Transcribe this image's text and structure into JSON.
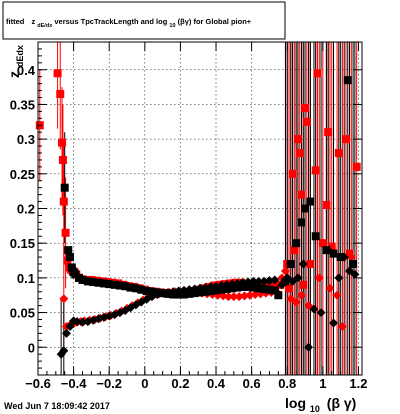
{
  "chart_data": {
    "type": "scatter",
    "title_prefix": "fitted",
    "title_z": "z",
    "title_sub": "dE/dx",
    "title_mid": " versus TpcTrackLength and log",
    "title_sub2": "10",
    "title_end": "(βγ) for Global pion+",
    "ylabel": "z",
    "ylabel_sub": "dEdx",
    "xlabel_main": "log",
    "xlabel_sub": "10",
    "xlabel_end": "(β γ)",
    "xlim": [
      -0.6,
      1.22
    ],
    "ylim": [
      -0.04,
      0.44
    ],
    "xticks": [
      -0.6,
      -0.4,
      -0.2,
      0,
      0.2,
      0.4,
      0.6,
      0.8,
      1,
      1.2
    ],
    "xtick_labels": [
      "−0.6",
      "−0.4",
      "−0.2",
      "0",
      "0.2",
      "0.4",
      "0.6",
      "0.8",
      "1",
      "1.2"
    ],
    "yticks": [
      0,
      0.05,
      0.1,
      0.15,
      0.2,
      0.25,
      0.3,
      0.35,
      0.4
    ],
    "ytick_labels": [
      "0",
      "0.05",
      "0.1",
      "0.15",
      "0.2",
      "0.25",
      "0.3",
      "0.35",
      "0.4"
    ],
    "grid": true,
    "timestamp": "Wed Jun  7 18:09:42 2017",
    "colors": {
      "red": "#ff0000",
      "black": "#000000"
    },
    "series": [
      {
        "color": "#ff0000",
        "marker": "square",
        "points": [
          [
            -0.59,
            0.32
          ],
          [
            -0.49,
            0.395
          ],
          [
            -0.475,
            0.365
          ],
          [
            -0.465,
            0.295
          ],
          [
            -0.46,
            0.27
          ],
          [
            -0.455,
            0.21
          ],
          [
            -0.445,
            0.165
          ],
          [
            -0.435,
            0.125
          ],
          [
            -0.425,
            0.115
          ],
          [
            -0.415,
            0.112
          ],
          [
            -0.405,
            0.11
          ],
          [
            -0.395,
            0.108
          ],
          [
            -0.385,
            0.105
          ],
          [
            -0.37,
            0.1
          ],
          [
            -0.35,
            0.098
          ],
          [
            -0.33,
            0.097
          ],
          [
            -0.3,
            0.097
          ],
          [
            -0.27,
            0.096
          ],
          [
            -0.24,
            0.095
          ],
          [
            -0.21,
            0.094
          ],
          [
            -0.18,
            0.093
          ],
          [
            -0.15,
            0.092
          ],
          [
            -0.12,
            0.09
          ],
          [
            -0.09,
            0.088
          ],
          [
            -0.06,
            0.087
          ],
          [
            -0.03,
            0.085
          ],
          [
            0.0,
            0.083
          ],
          [
            0.03,
            0.081
          ],
          [
            0.06,
            0.08
          ],
          [
            0.09,
            0.079
          ],
          [
            0.12,
            0.078
          ],
          [
            0.15,
            0.077
          ],
          [
            0.18,
            0.076
          ],
          [
            0.21,
            0.077
          ],
          [
            0.24,
            0.079
          ],
          [
            0.27,
            0.081
          ],
          [
            0.3,
            0.083
          ],
          [
            0.33,
            0.085
          ],
          [
            0.36,
            0.087
          ],
          [
            0.39,
            0.089
          ],
          [
            0.42,
            0.09
          ],
          [
            0.45,
            0.091
          ],
          [
            0.48,
            0.092
          ],
          [
            0.51,
            0.093
          ],
          [
            0.54,
            0.093
          ],
          [
            0.57,
            0.092
          ],
          [
            0.6,
            0.092
          ],
          [
            0.63,
            0.091
          ],
          [
            0.66,
            0.09
          ],
          [
            0.69,
            0.09
          ],
          [
            0.72,
            0.088
          ],
          [
            0.76,
            0.09
          ],
          [
            0.78,
            0.095
          ],
          [
            0.8,
            0.12
          ],
          [
            0.81,
            0.085
          ],
          [
            0.83,
            0.25
          ],
          [
            0.84,
            0.14
          ],
          [
            0.86,
            0.3
          ],
          [
            0.87,
            0.28
          ],
          [
            0.88,
            0.22
          ],
          [
            0.89,
            0.09
          ],
          [
            0.9,
            0.345
          ],
          [
            0.91,
            0.325
          ],
          [
            0.93,
            0.12
          ],
          [
            0.96,
            0.255
          ],
          [
            0.97,
            0.395
          ],
          [
            1.0,
            0.15
          ],
          [
            1.02,
            0.205
          ],
          [
            1.03,
            0.31
          ],
          [
            1.05,
            0.145
          ],
          [
            1.09,
            0.28
          ],
          [
            1.13,
            0.3
          ],
          [
            1.15,
            0.135
          ],
          [
            1.19,
            0.26
          ]
        ]
      },
      {
        "color": "#ff0000",
        "marker": "diamond",
        "points": [
          [
            -0.455,
            0.07
          ],
          [
            -0.44,
            0.03
          ],
          [
            -0.42,
            0.032
          ],
          [
            -0.4,
            0.034
          ],
          [
            -0.38,
            0.036
          ],
          [
            -0.36,
            0.037
          ],
          [
            -0.34,
            0.038
          ],
          [
            -0.31,
            0.039
          ],
          [
            -0.28,
            0.04
          ],
          [
            -0.25,
            0.042
          ],
          [
            -0.22,
            0.044
          ],
          [
            -0.19,
            0.046
          ],
          [
            -0.16,
            0.049
          ],
          [
            -0.13,
            0.052
          ],
          [
            -0.1,
            0.056
          ],
          [
            -0.07,
            0.06
          ],
          [
            -0.04,
            0.064
          ],
          [
            -0.01,
            0.068
          ],
          [
            0.02,
            0.072
          ],
          [
            0.05,
            0.075
          ],
          [
            0.08,
            0.077
          ],
          [
            0.11,
            0.078
          ],
          [
            0.14,
            0.079
          ],
          [
            0.17,
            0.08
          ],
          [
            0.2,
            0.08
          ],
          [
            0.23,
            0.08
          ],
          [
            0.26,
            0.08
          ],
          [
            0.29,
            0.079
          ],
          [
            0.32,
            0.078
          ],
          [
            0.35,
            0.077
          ],
          [
            0.38,
            0.076
          ],
          [
            0.41,
            0.075
          ],
          [
            0.44,
            0.074
          ],
          [
            0.47,
            0.073
          ],
          [
            0.5,
            0.073
          ],
          [
            0.53,
            0.073
          ],
          [
            0.56,
            0.074
          ],
          [
            0.59,
            0.075
          ],
          [
            0.62,
            0.076
          ],
          [
            0.65,
            0.077
          ],
          [
            0.68,
            0.078
          ],
          [
            0.71,
            0.079
          ],
          [
            0.74,
            0.08
          ],
          [
            0.77,
            0.1
          ],
          [
            0.79,
            0.11
          ],
          [
            0.82,
            0.07
          ],
          [
            0.85,
            0.065
          ],
          [
            0.88,
            0.075
          ],
          [
            0.92,
            0.06
          ],
          [
            0.98,
            0.1
          ],
          [
            1.04,
            0.085
          ],
          [
            1.08,
            0.075
          ],
          [
            1.11,
            0.03
          ],
          [
            1.16,
            0.13
          ]
        ]
      },
      {
        "color": "#000000",
        "marker": "square",
        "points": [
          [
            -0.45,
            0.23
          ],
          [
            -0.43,
            0.14
          ],
          [
            -0.42,
            0.13
          ],
          [
            -0.41,
            0.115
          ],
          [
            -0.4,
            0.108
          ],
          [
            -0.39,
            0.105
          ],
          [
            -0.37,
            0.1
          ],
          [
            -0.35,
            0.097
          ],
          [
            -0.32,
            0.095
          ],
          [
            -0.29,
            0.094
          ],
          [
            -0.26,
            0.093
          ],
          [
            -0.23,
            0.092
          ],
          [
            -0.2,
            0.091
          ],
          [
            -0.17,
            0.09
          ],
          [
            -0.14,
            0.089
          ],
          [
            -0.11,
            0.088
          ],
          [
            -0.08,
            0.086
          ],
          [
            -0.05,
            0.085
          ],
          [
            -0.02,
            0.083
          ],
          [
            0.01,
            0.081
          ],
          [
            0.04,
            0.08
          ],
          [
            0.07,
            0.079
          ],
          [
            0.1,
            0.078
          ],
          [
            0.13,
            0.077
          ],
          [
            0.16,
            0.076
          ],
          [
            0.19,
            0.076
          ],
          [
            0.22,
            0.076
          ],
          [
            0.25,
            0.077
          ],
          [
            0.28,
            0.078
          ],
          [
            0.31,
            0.079
          ],
          [
            0.34,
            0.08
          ],
          [
            0.37,
            0.081
          ],
          [
            0.4,
            0.082
          ],
          [
            0.43,
            0.083
          ],
          [
            0.46,
            0.084
          ],
          [
            0.49,
            0.085
          ],
          [
            0.52,
            0.086
          ],
          [
            0.55,
            0.087
          ],
          [
            0.58,
            0.087
          ],
          [
            0.61,
            0.086
          ],
          [
            0.64,
            0.085
          ],
          [
            0.67,
            0.084
          ],
          [
            0.7,
            0.083
          ],
          [
            0.73,
            0.082
          ],
          [
            0.75,
            0.075
          ],
          [
            0.79,
            0.095
          ],
          [
            0.82,
            0.12
          ],
          [
            0.85,
            0.15
          ],
          [
            0.88,
            0.18
          ],
          [
            0.9,
            0.2
          ],
          [
            0.93,
            0.21
          ],
          [
            0.96,
            0.16
          ],
          [
            1.02,
            0.14
          ],
          [
            1.06,
            0.135
          ],
          [
            1.1,
            0.13
          ],
          [
            1.14,
            0.385
          ],
          [
            1.17,
            0.12
          ]
        ]
      },
      {
        "color": "#000000",
        "marker": "diamond",
        "points": [
          [
            -0.47,
            -0.01
          ],
          [
            -0.455,
            -0.005
          ],
          [
            -0.44,
            0.02
          ],
          [
            -0.42,
            0.03
          ],
          [
            -0.4,
            0.038
          ],
          [
            -0.38,
            0.037
          ],
          [
            -0.35,
            0.036
          ],
          [
            -0.32,
            0.037
          ],
          [
            -0.29,
            0.039
          ],
          [
            -0.26,
            0.041
          ],
          [
            -0.23,
            0.043
          ],
          [
            -0.2,
            0.045
          ],
          [
            -0.17,
            0.047
          ],
          [
            -0.14,
            0.05
          ],
          [
            -0.11,
            0.053
          ],
          [
            -0.08,
            0.057
          ],
          [
            -0.05,
            0.061
          ],
          [
            -0.02,
            0.065
          ],
          [
            0.01,
            0.069
          ],
          [
            0.04,
            0.073
          ],
          [
            0.07,
            0.076
          ],
          [
            0.1,
            0.078
          ],
          [
            0.13,
            0.079
          ],
          [
            0.16,
            0.08
          ],
          [
            0.19,
            0.081
          ],
          [
            0.22,
            0.082
          ],
          [
            0.25,
            0.083
          ],
          [
            0.28,
            0.084
          ],
          [
            0.31,
            0.085
          ],
          [
            0.34,
            0.086
          ],
          [
            0.37,
            0.087
          ],
          [
            0.4,
            0.088
          ],
          [
            0.43,
            0.089
          ],
          [
            0.46,
            0.09
          ],
          [
            0.49,
            0.091
          ],
          [
            0.52,
            0.092
          ],
          [
            0.55,
            0.093
          ],
          [
            0.58,
            0.094
          ],
          [
            0.61,
            0.095
          ],
          [
            0.64,
            0.095
          ],
          [
            0.67,
            0.095
          ],
          [
            0.7,
            0.096
          ],
          [
            0.73,
            0.097
          ],
          [
            0.77,
            0.09
          ],
          [
            0.8,
            0.1
          ],
          [
            0.83,
            0.095
          ],
          [
            0.86,
            0.1
          ],
          [
            0.89,
            0.12
          ],
          [
            0.92,
            0.0
          ],
          [
            0.95,
            0.055
          ],
          [
            0.99,
            0.05
          ],
          [
            1.03,
            0.14
          ],
          [
            1.06,
            0.035
          ],
          [
            1.09,
            0.1
          ],
          [
            1.12,
            0.13
          ],
          [
            1.15,
            0.11
          ],
          [
            1.18,
            0.105
          ]
        ]
      }
    ]
  }
}
